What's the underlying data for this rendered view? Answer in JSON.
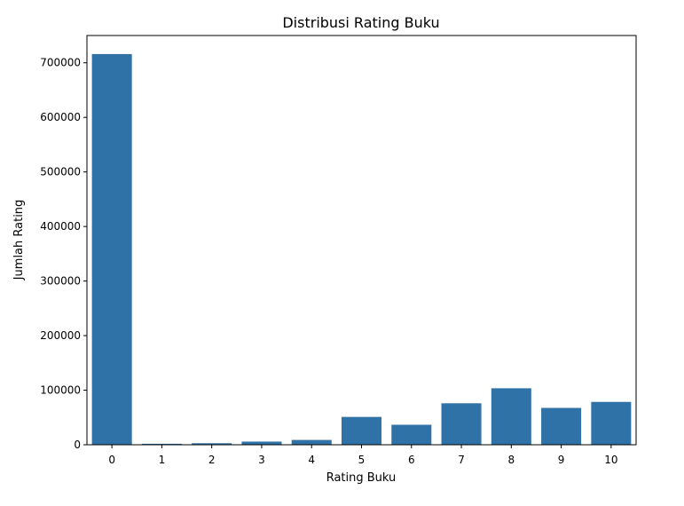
{
  "chart_data": {
    "type": "bar",
    "title": "Distribusi Rating Buku",
    "xlabel": "Rating Buku",
    "ylabel": "Jumlah Rating",
    "categories": [
      "0",
      "1",
      "2",
      "3",
      "4",
      "5",
      "6",
      "7",
      "8",
      "9",
      "10"
    ],
    "values": [
      716000,
      1800,
      2800,
      5800,
      8800,
      51000,
      36600,
      76000,
      103500,
      67500,
      78500
    ],
    "ylim": [
      0,
      750000
    ],
    "yticks": [
      0,
      100000,
      200000,
      300000,
      400000,
      500000,
      600000,
      700000
    ],
    "ytick_labels": [
      "0",
      "100000",
      "200000",
      "300000",
      "400000",
      "500000",
      "600000",
      "700000"
    ],
    "grid": false,
    "bar_color": "#2f72a8"
  }
}
